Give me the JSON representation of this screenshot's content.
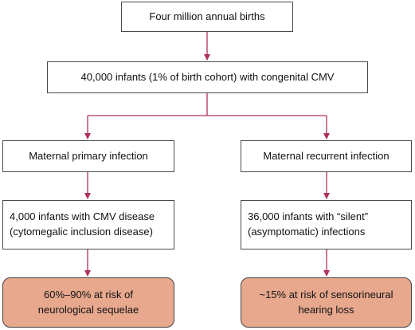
{
  "diagram": {
    "colors": {
      "connector": "#b0315a",
      "outcome_fill": "#e7a88e",
      "box_border": "#4a4a4a"
    },
    "nodes": {
      "births": {
        "text": "Four million annual births"
      },
      "congenital": {
        "text": "40,000 infants (1% of birth cohort) with congenital CMV"
      },
      "primary": {
        "text": "Maternal primary infection"
      },
      "recurrent": {
        "text": "Maternal recurrent infection"
      },
      "cmv_disease": {
        "line1": "4,000 infants with CMV disease",
        "line2": "(cytomegalic inclusion disease)"
      },
      "silent": {
        "line1": "36,000 infants with “silent”",
        "line2": "(asymptomatic) infections"
      },
      "neuro": {
        "line1": "60%–90% at risk of",
        "line2": "neurological sequelae"
      },
      "hearing": {
        "line1": "~15% at risk of sensorineural",
        "line2": "hearing loss"
      }
    }
  }
}
